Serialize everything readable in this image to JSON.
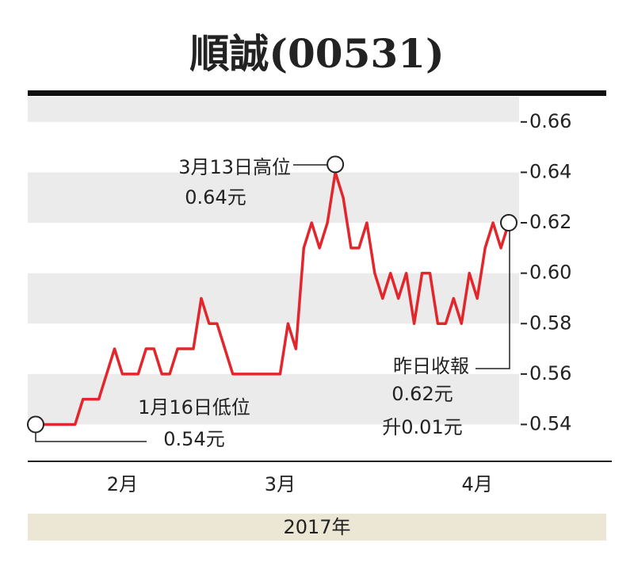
{
  "chart_data": {
    "type": "line",
    "title": "順誠(00531)",
    "xlabel": "2017年",
    "categories": [
      null,
      null,
      null,
      null,
      null,
      null,
      null,
      null,
      null,
      null,
      null,
      "2月",
      null,
      null,
      null,
      null,
      null,
      null,
      null,
      null,
      null,
      null,
      null,
      null,
      null,
      null,
      null,
      null,
      null,
      null,
      null,
      "3月",
      null,
      null,
      null,
      null,
      null,
      null,
      null,
      null,
      null,
      null,
      null,
      null,
      null,
      null,
      null,
      null,
      null,
      null,
      null,
      null,
      null,
      null,
      null,
      null,
      "4月",
      null,
      null,
      null,
      null
    ],
    "series": [
      {
        "color": "#e3262b",
        "values": [
          0.54,
          0.54,
          0.54,
          0.54,
          0.54,
          0.54,
          0.55,
          0.55,
          0.55,
          0.56,
          0.57,
          0.56,
          0.56,
          0.56,
          0.57,
          0.57,
          0.56,
          0.56,
          0.57,
          0.57,
          0.57,
          0.59,
          0.58,
          0.58,
          0.57,
          0.56,
          0.56,
          0.56,
          0.56,
          0.56,
          0.56,
          0.56,
          0.58,
          0.57,
          0.61,
          0.62,
          0.61,
          0.62,
          0.64,
          0.63,
          0.61,
          0.61,
          0.62,
          0.6,
          0.59,
          0.6,
          0.59,
          0.6,
          0.58,
          0.6,
          0.6,
          0.58,
          0.58,
          0.59,
          0.58,
          0.6,
          0.59,
          0.61,
          0.62,
          0.61,
          0.62
        ]
      }
    ],
    "ylim": [
      0.526,
      0.67
    ],
    "yticks": [
      0.54,
      0.56,
      0.58,
      {
        "value": 0.6,
        "label": "0.60"
      },
      0.62,
      0.64,
      0.66
    ],
    "annotations": [
      {
        "text": [
          "3月13日高位",
          "0.64元"
        ]
      },
      {
        "text": [
          "1月16日低位",
          "0.54元"
        ]
      },
      {
        "text": [
          "昨日收報",
          "0.62元",
          "升0.01元"
        ]
      }
    ]
  }
}
